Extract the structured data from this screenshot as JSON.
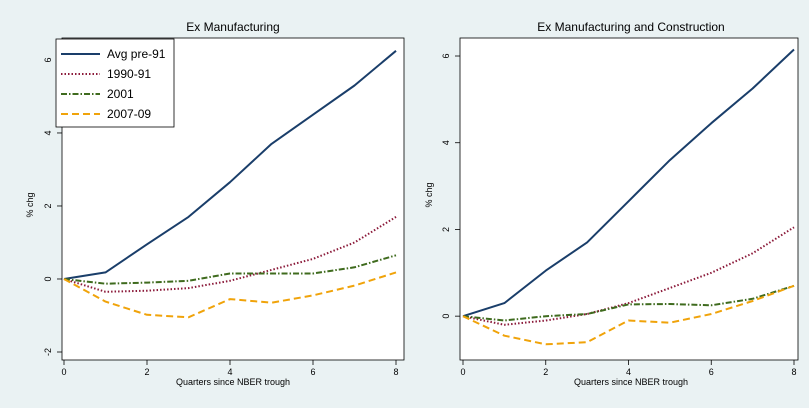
{
  "chart_data": [
    {
      "type": "line",
      "title": "Ex Manufacturing",
      "xlabel": "Quarters since NBER trough",
      "ylabel": "% chg",
      "x": [
        0,
        1,
        2,
        3,
        4,
        5,
        6,
        7,
        8
      ],
      "xticks": [
        0,
        2,
        4,
        6,
        8
      ],
      "yticks": [
        -2,
        0,
        2,
        4,
        6
      ],
      "xlim": [
        0,
        8
      ],
      "ylim": [
        -2,
        6.3
      ],
      "legend": "top-left inside",
      "series": [
        {
          "name": "Avg pre-91",
          "color": "#1a3e6a",
          "dash": "solid",
          "values": [
            0,
            0.18,
            0.95,
            1.7,
            2.65,
            3.7,
            4.5,
            5.3,
            6.25
          ]
        },
        {
          "name": "1990-91",
          "color": "#8b1a3a",
          "dash": "dotted",
          "values": [
            0,
            -0.35,
            -0.32,
            -0.25,
            -0.05,
            0.25,
            0.55,
            1.0,
            1.7
          ]
        },
        {
          "name": "2001",
          "color": "#3f6b1e",
          "dash": "dashdot",
          "values": [
            0,
            -0.13,
            -0.1,
            -0.05,
            0.15,
            0.15,
            0.15,
            0.32,
            0.65
          ]
        },
        {
          "name": "2007-09",
          "color": "#f0a30a",
          "dash": "dashed",
          "values": [
            0,
            -0.62,
            -0.98,
            -1.05,
            -0.55,
            -0.65,
            -0.45,
            -0.18,
            0.18
          ]
        }
      ]
    },
    {
      "type": "line",
      "title": "Ex Manufacturing and Construction",
      "xlabel": "Quarters since NBER trough",
      "ylabel": "% chg",
      "x": [
        0,
        1,
        2,
        3,
        4,
        5,
        6,
        7,
        8
      ],
      "xticks": [
        0,
        2,
        4,
        6,
        8
      ],
      "yticks": [
        0,
        2,
        4,
        6
      ],
      "xlim": [
        0,
        8
      ],
      "ylim": [
        -0.55,
        6.3
      ],
      "series": [
        {
          "name": "Avg pre-91",
          "color": "#1a3e6a",
          "dash": "solid",
          "values": [
            0,
            0.3,
            1.05,
            1.7,
            2.65,
            3.6,
            4.45,
            5.25,
            6.15
          ]
        },
        {
          "name": "1990-91",
          "color": "#8b1a3a",
          "dash": "dotted",
          "values": [
            0,
            -0.2,
            -0.1,
            0.05,
            0.3,
            0.65,
            1.0,
            1.45,
            2.05
          ]
        },
        {
          "name": "2001",
          "color": "#3f6b1e",
          "dash": "dashdot",
          "values": [
            0,
            -0.1,
            0.0,
            0.05,
            0.27,
            0.28,
            0.25,
            0.4,
            0.7
          ]
        },
        {
          "name": "2007-09",
          "color": "#f0a30a",
          "dash": "dashed",
          "values": [
            0,
            -0.45,
            -0.65,
            -0.6,
            -0.1,
            -0.15,
            0.05,
            0.35,
            0.7
          ]
        }
      ]
    }
  ]
}
